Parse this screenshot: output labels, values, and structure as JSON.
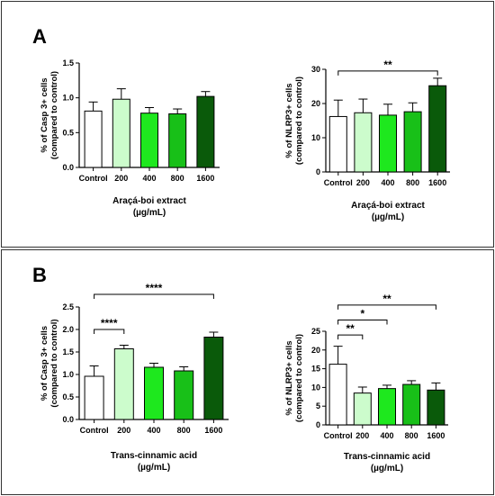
{
  "panels": [
    {
      "letter": "A"
    },
    {
      "letter": "B"
    }
  ],
  "colors": {
    "Control": "#ffffff",
    "200": "#ccfccc",
    "400": "#1ee81e",
    "800": "#18c018",
    "1600": "#0a5a0a"
  },
  "chart_data": [
    {
      "id": "A-casp3",
      "panel": "A",
      "type": "bar",
      "categories": [
        "Control",
        "200",
        "400",
        "800",
        "1600"
      ],
      "values": [
        0.81,
        0.98,
        0.78,
        0.77,
        1.02
      ],
      "errors": [
        0.13,
        0.15,
        0.08,
        0.07,
        0.07
      ],
      "ylabel_lines": [
        "% of Casp 3+ cells",
        "(compared to control)"
      ],
      "xlabel_lines": [
        "Araçá-boi extract",
        "(µg/mL)"
      ],
      "ylim": [
        0,
        1.5
      ],
      "yticks": [
        0.0,
        0.5,
        1.0,
        1.5
      ],
      "ytick_labels": [
        "0.0",
        "0.5",
        "1.0",
        "1.5"
      ],
      "significance": []
    },
    {
      "id": "A-nlrp3",
      "panel": "A",
      "type": "bar",
      "categories": [
        "Control",
        "200",
        "400",
        "800",
        "1600"
      ],
      "values": [
        16.2,
        17.3,
        16.6,
        17.6,
        25.2
      ],
      "errors": [
        4.8,
        4.0,
        3.2,
        2.6,
        2.2
      ],
      "ylabel_lines": [
        "% of NLRP3+ cells",
        "(compared to control)"
      ],
      "xlabel_lines": [
        "Araçá-boi extract",
        "(µg/mL)"
      ],
      "ylim": [
        0,
        30
      ],
      "yticks": [
        0,
        10,
        20,
        30
      ],
      "ytick_labels": [
        "0",
        "10",
        "20",
        "30"
      ],
      "significance": [
        {
          "from": 0,
          "to": 4,
          "y": 29.5,
          "label": "**"
        }
      ]
    },
    {
      "id": "B-casp3",
      "panel": "B",
      "type": "bar",
      "categories": [
        "Control",
        "200",
        "400",
        "800",
        "1600"
      ],
      "values": [
        0.96,
        1.57,
        1.16,
        1.08,
        1.83
      ],
      "errors": [
        0.23,
        0.08,
        0.09,
        0.09,
        0.11
      ],
      "ylabel_lines": [
        "% of Casp 3+ cells",
        "(compared to control)"
      ],
      "xlabel_lines": [
        "Trans-cinnamic acid",
        "(µg/mL)"
      ],
      "ylim": [
        0,
        2.5
      ],
      "yticks": [
        0.0,
        0.5,
        1.0,
        1.5,
        2.0,
        2.5
      ],
      "ytick_labels": [
        "0.0",
        "0.5",
        "1.0",
        "1.5",
        "2.0",
        "2.5"
      ],
      "significance": [
        {
          "from": 0,
          "to": 4,
          "y": 2.78,
          "label": "****"
        },
        {
          "from": 0,
          "to": 1,
          "y": 2.0,
          "label": "****"
        }
      ]
    },
    {
      "id": "B-nlrp3",
      "panel": "B",
      "type": "bar",
      "categories": [
        "Control",
        "200",
        "400",
        "800",
        "1600"
      ],
      "values": [
        16.2,
        8.5,
        9.7,
        10.8,
        9.3
      ],
      "errors": [
        4.8,
        1.6,
        0.9,
        1.0,
        1.9
      ],
      "ylabel_lines": [
        "% of NLRP3+ cells",
        "(compared to control)"
      ],
      "xlabel_lines": [
        "Trans-cinnamic acid",
        "(µg/mL)"
      ],
      "ylim": [
        0,
        25
      ],
      "yticks": [
        0,
        5,
        10,
        15,
        20,
        25
      ],
      "ytick_labels": [
        "0",
        "5",
        "10",
        "15",
        "20",
        "25"
      ],
      "significance": [
        {
          "from": 0,
          "to": 4,
          "y": 32,
          "label": "**"
        },
        {
          "from": 0,
          "to": 2,
          "y": 28,
          "label": "*"
        },
        {
          "from": 0,
          "to": 1,
          "y": 24,
          "label": "**"
        }
      ]
    }
  ]
}
